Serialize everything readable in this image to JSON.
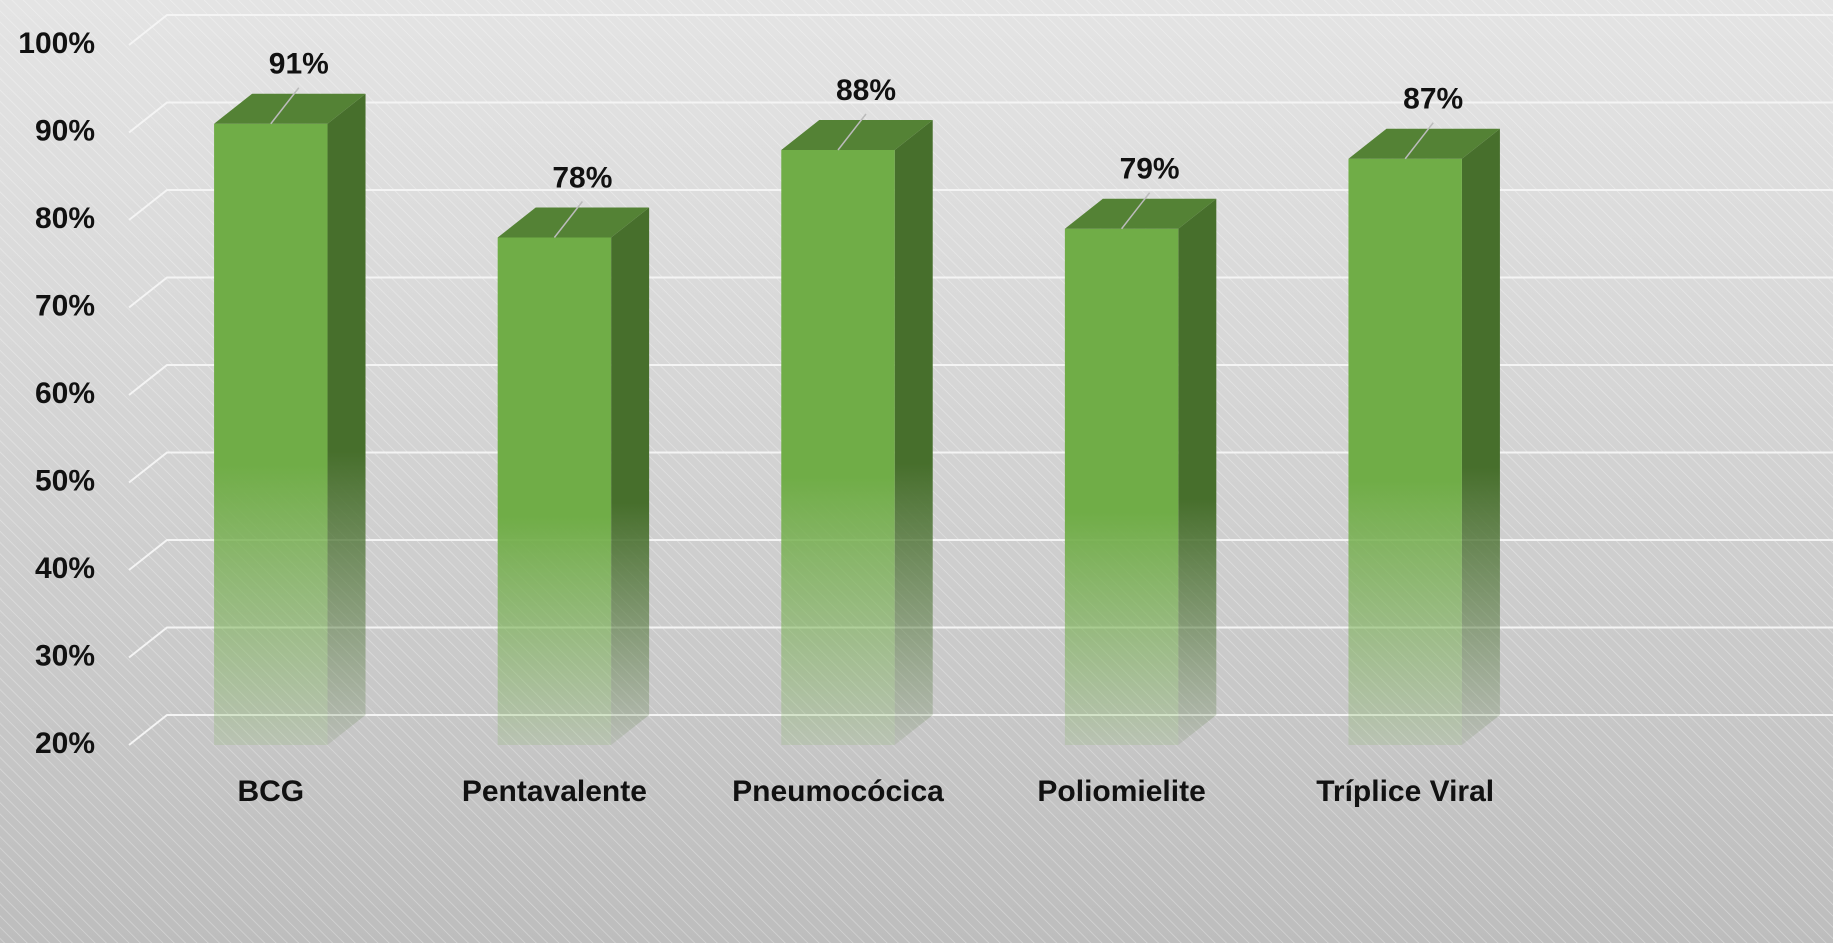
{
  "chart_data": {
    "type": "bar3d",
    "categories": [
      "BCG",
      "Pentavalente",
      "Pneumocócica",
      "Poliomielite",
      "Tríplice Viral"
    ],
    "values": [
      91,
      78,
      88,
      79,
      87
    ],
    "value_labels": [
      "91%",
      "78%",
      "88%",
      "79%",
      "87%"
    ],
    "color": "#70ad47",
    "ylim": [
      20,
      100
    ],
    "yticks": [
      {
        "value": 20,
        "label": "20%"
      },
      {
        "value": 30,
        "label": "30%"
      },
      {
        "value": 40,
        "label": "40%"
      },
      {
        "value": 50,
        "label": "50%"
      },
      {
        "value": 60,
        "label": "60%"
      },
      {
        "value": 70,
        "label": "70%"
      },
      {
        "value": 80,
        "label": "80%"
      },
      {
        "value": 90,
        "label": "90%"
      },
      {
        "value": 100,
        "label": "100%"
      }
    ],
    "grid": true
  }
}
